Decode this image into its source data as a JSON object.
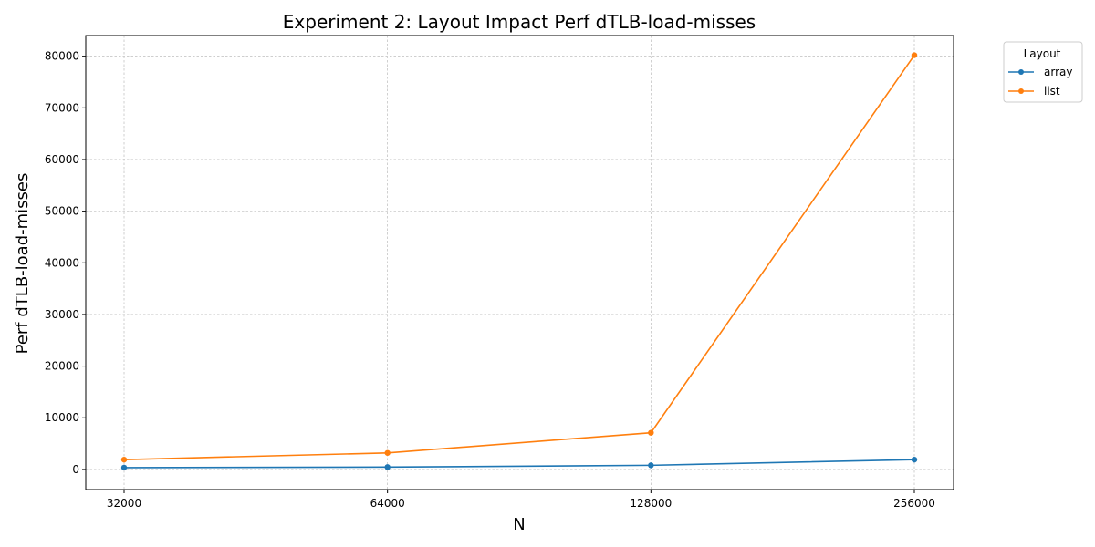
{
  "chart_data": {
    "type": "line",
    "title": "Experiment 2: Layout Impact Perf dTLB-load-misses",
    "xlabel": "N",
    "ylabel": "Perf dTLB-load-misses",
    "x_scale": "log2",
    "x": [
      32000,
      64000,
      128000,
      256000
    ],
    "x_tick_labels": [
      "32000",
      "64000",
      "128000",
      "256000"
    ],
    "ylim": [
      -3900,
      84000
    ],
    "y_ticks": [
      0,
      10000,
      20000,
      30000,
      40000,
      50000,
      60000,
      70000,
      80000
    ],
    "y_tick_labels": [
      "0",
      "10000",
      "20000",
      "30000",
      "40000",
      "50000",
      "60000",
      "70000",
      "80000"
    ],
    "grid": true,
    "legend": {
      "title": "Layout",
      "placement": "outside-top-right"
    },
    "series": [
      {
        "name": "array",
        "color": "#1f77b4",
        "values": [
          350,
          450,
          800,
          1900
        ]
      },
      {
        "name": "list",
        "color": "#ff7f0e",
        "values": [
          1900,
          3200,
          7100,
          80200
        ]
      }
    ]
  }
}
